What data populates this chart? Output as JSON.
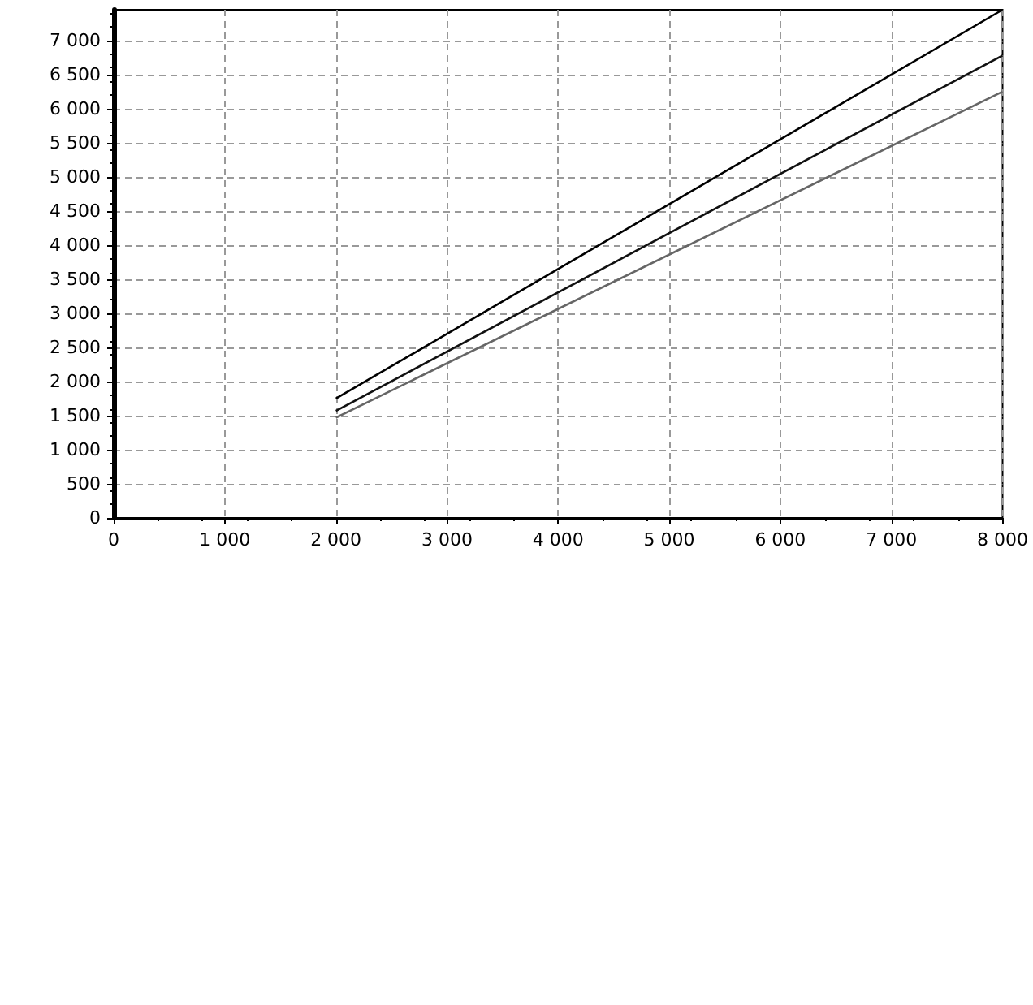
{
  "chart_data": {
    "type": "line",
    "x": [
      2000,
      8000
    ],
    "series": [
      {
        "color": "#000000",
        "values": [
          1750,
          7450
        ]
      },
      {
        "color": "#111111",
        "values": [
          1570,
          6780
        ]
      },
      {
        "color": "#666666",
        "values": [
          1470,
          6250
        ]
      }
    ],
    "xlim": [
      0,
      8000
    ],
    "xticks": [
      {
        "value": 0,
        "label": "0"
      },
      {
        "value": 1000,
        "label": "1 000"
      },
      {
        "value": 2000,
        "label": "2 000"
      },
      {
        "value": 3000,
        "label": "3 000"
      },
      {
        "value": 4000,
        "label": "4 000"
      },
      {
        "value": 5000,
        "label": "5 000"
      },
      {
        "value": 6000,
        "label": "6 000"
      },
      {
        "value": 7000,
        "label": "7 000"
      },
      {
        "value": 8000,
        "label": "8 000"
      }
    ],
    "ylim": [
      0,
      7450
    ],
    "yticks": [
      {
        "value": 0,
        "label": "0"
      },
      {
        "value": 500,
        "label": "500"
      },
      {
        "value": 1000,
        "label": "1 000"
      },
      {
        "value": 1500,
        "label": "1 500"
      },
      {
        "value": 2000,
        "label": "2 000"
      },
      {
        "value": 2500,
        "label": "2 500"
      },
      {
        "value": 3000,
        "label": "3 000"
      },
      {
        "value": 3500,
        "label": "3 500"
      },
      {
        "value": 4000,
        "label": "4 000"
      },
      {
        "value": 4500,
        "label": "4 500"
      },
      {
        "value": 5000,
        "label": "5 000"
      },
      {
        "value": 5500,
        "label": "5 500"
      },
      {
        "value": 6000,
        "label": "6 000"
      },
      {
        "value": 6500,
        "label": "6 500"
      },
      {
        "value": 7000,
        "label": "7 000"
      }
    ],
    "grid": true,
    "marker": "none",
    "line_style": "solid"
  }
}
